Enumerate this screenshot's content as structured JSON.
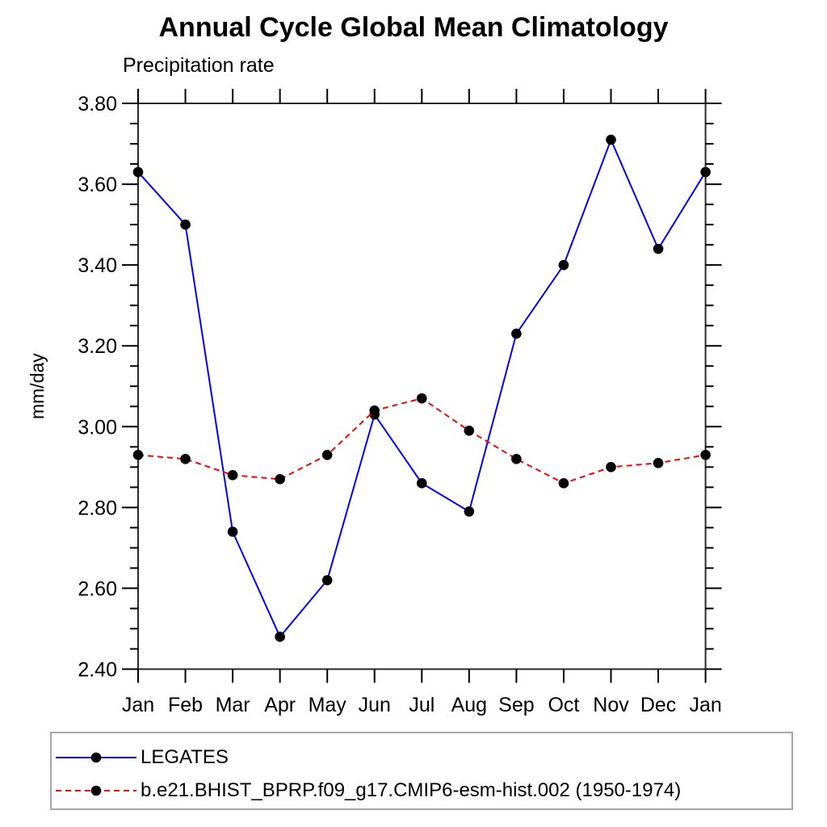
{
  "title": "Annual Cycle Global Mean Climatology",
  "subtitle": "Precipitation rate",
  "y_axis": {
    "label": "mm/day",
    "tick_labels": [
      "2.40",
      "2.60",
      "2.80",
      "3.00",
      "3.20",
      "3.40",
      "3.60",
      "3.80"
    ]
  },
  "x_axis": {
    "tick_labels": [
      "Jan",
      "Feb",
      "Mar",
      "Apr",
      "May",
      "Jun",
      "Jul",
      "Aug",
      "Sep",
      "Oct",
      "Nov",
      "Dec",
      "Jan"
    ]
  },
  "colors": {
    "series_legates": "#0000ff",
    "series_model": "#ff0000",
    "marker": "#000000",
    "axis": "#2a2a2a",
    "tick": "#000000",
    "legend_border": "#a6a6a6",
    "text": "#000000"
  },
  "chart_data": {
    "type": "line",
    "title": "Annual Cycle Global Mean Climatology",
    "subtitle": "Precipitation rate",
    "ylabel": "mm/day",
    "xlabel": "",
    "categories": [
      "Jan",
      "Feb",
      "Mar",
      "Apr",
      "May",
      "Jun",
      "Jul",
      "Aug",
      "Sep",
      "Oct",
      "Nov",
      "Dec",
      "Jan"
    ],
    "series": [
      {
        "name": "LEGATES",
        "color": "#0000ff",
        "line_style": "solid",
        "marker": "filled-circle",
        "values": [
          3.63,
          3.5,
          2.74,
          2.48,
          2.62,
          3.03,
          2.86,
          2.79,
          3.23,
          3.4,
          3.71,
          3.44,
          3.63
        ]
      },
      {
        "name": "b.e21.BHIST_BPRP.f09_g17.CMIP6-esm-hist.002 (1950-1974)",
        "color": "#ff0000",
        "line_style": "dashed",
        "marker": "filled-circle",
        "values": [
          2.93,
          2.92,
          2.88,
          2.87,
          2.93,
          3.04,
          3.07,
          2.99,
          2.92,
          2.86,
          2.9,
          2.91,
          2.93
        ]
      }
    ],
    "ylim": [
      2.4,
      3.8
    ],
    "ytick_major_step": 0.2,
    "ytick_minor_step": 0.05,
    "grid": false,
    "tick_direction": "outward",
    "legend_position": "bottom-left-box"
  }
}
